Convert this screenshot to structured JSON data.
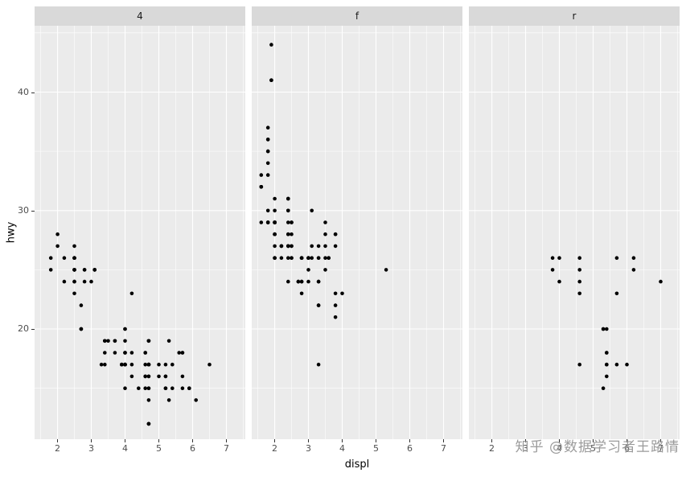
{
  "figure": {
    "watermark": "知乎 @数据学习者王路情",
    "colors": {
      "panel_bg": "#ebebeb",
      "strip_bg": "#d9d9d9",
      "grid": "#ffffff",
      "point": "#000000",
      "axis_text": "#4d4d4d",
      "watermark": "#9b9b9b"
    }
  },
  "chart_data": {
    "type": "scatter",
    "title": "",
    "xlabel": "displ",
    "ylabel": "hwy",
    "legend": "none",
    "grid": true,
    "facet_labels": [
      "4",
      "f",
      "r"
    ],
    "x_ticks": [
      2,
      3,
      4,
      5,
      6,
      7
    ],
    "y_ticks": [
      20,
      30,
      40
    ],
    "x_minor_ticks": [
      1.5,
      2.5,
      3.5,
      4.5,
      5.5,
      6.5,
      7.5
    ],
    "y_minor_ticks": [
      15,
      25,
      35,
      45
    ],
    "xlim": [
      1.32,
      7.56
    ],
    "ylim": [
      10.7,
      45.6
    ],
    "facets": [
      {
        "label": "4",
        "points": [
          [
            1.8,
            26
          ],
          [
            1.8,
            25
          ],
          [
            2.0,
            28
          ],
          [
            2.0,
            27
          ],
          [
            2.8,
            25
          ],
          [
            2.8,
            25
          ],
          [
            3.1,
            25
          ],
          [
            3.1,
            25
          ],
          [
            2.8,
            24
          ],
          [
            3.1,
            25
          ],
          [
            4.2,
            23
          ],
          [
            5.3,
            19
          ],
          [
            5.3,
            14
          ],
          [
            5.7,
            15
          ],
          [
            6.5,
            17
          ],
          [
            3.7,
            19
          ],
          [
            3.7,
            18
          ],
          [
            3.9,
            17
          ],
          [
            3.9,
            17
          ],
          [
            4.7,
            19
          ],
          [
            4.7,
            19
          ],
          [
            4.7,
            12
          ],
          [
            5.2,
            17
          ],
          [
            5.2,
            15
          ],
          [
            3.9,
            17
          ],
          [
            4.7,
            17
          ],
          [
            4.7,
            17
          ],
          [
            4.7,
            16
          ],
          [
            4.7,
            12
          ],
          [
            5.2,
            16
          ],
          [
            5.9,
            15
          ],
          [
            4.7,
            16
          ],
          [
            4.7,
            15
          ],
          [
            4.7,
            17
          ],
          [
            4.7,
            17
          ],
          [
            4.7,
            12
          ],
          [
            4.7,
            17
          ],
          [
            5.2,
            16
          ],
          [
            5.2,
            15
          ],
          [
            5.7,
            16
          ],
          [
            5.9,
            15
          ],
          [
            4.0,
            17
          ],
          [
            4.0,
            17
          ],
          [
            4.0,
            18
          ],
          [
            4.0,
            17
          ],
          [
            4.6,
            16
          ],
          [
            5.0,
            16
          ],
          [
            4.2,
            17
          ],
          [
            4.2,
            16
          ],
          [
            4.6,
            16
          ],
          [
            4.6,
            15
          ],
          [
            4.6,
            17
          ],
          [
            5.4,
            15
          ],
          [
            5.4,
            17
          ],
          [
            3.0,
            24
          ],
          [
            3.7,
            19
          ],
          [
            4.0,
            17
          ],
          [
            4.7,
            17
          ],
          [
            4.7,
            19
          ],
          [
            4.7,
            14
          ],
          [
            5.7,
            18
          ],
          [
            6.1,
            14
          ],
          [
            4.0,
            15
          ],
          [
            4.2,
            18
          ],
          [
            4.4,
            15
          ],
          [
            4.6,
            18
          ],
          [
            4.0,
            17
          ],
          [
            4.0,
            19
          ],
          [
            4.6,
            18
          ],
          [
            5.0,
            17
          ],
          [
            3.3,
            17
          ],
          [
            3.5,
            19
          ],
          [
            4.0,
            18
          ],
          [
            5.6,
            18
          ],
          [
            2.5,
            26
          ],
          [
            2.5,
            24
          ],
          [
            2.5,
            26
          ],
          [
            2.5,
            25
          ],
          [
            2.5,
            27
          ],
          [
            2.5,
            25
          ],
          [
            2.2,
            26
          ],
          [
            2.2,
            24
          ],
          [
            2.5,
            25
          ],
          [
            2.5,
            25
          ],
          [
            2.5,
            26
          ],
          [
            2.5,
            23
          ],
          [
            2.5,
            24
          ],
          [
            2.5,
            26
          ],
          [
            2.7,
            20
          ],
          [
            2.7,
            20
          ],
          [
            3.4,
            19
          ],
          [
            3.4,
            17
          ],
          [
            4.0,
            20
          ],
          [
            4.7,
            17
          ],
          [
            4.7,
            15
          ],
          [
            5.7,
            18
          ],
          [
            2.7,
            20
          ],
          [
            2.7,
            22
          ],
          [
            3.4,
            19
          ],
          [
            3.4,
            18
          ],
          [
            4.0,
            20
          ],
          [
            4.0,
            18
          ],
          [
            4.0,
            17
          ]
        ]
      },
      {
        "label": "f",
        "points": [
          [
            1.8,
            29
          ],
          [
            1.8,
            29
          ],
          [
            2.0,
            31
          ],
          [
            2.0,
            30
          ],
          [
            2.8,
            26
          ],
          [
            2.8,
            26
          ],
          [
            3.1,
            27
          ],
          [
            2.4,
            27
          ],
          [
            2.4,
            30
          ],
          [
            3.1,
            26
          ],
          [
            3.5,
            29
          ],
          [
            3.6,
            26
          ],
          [
            2.4,
            24
          ],
          [
            3.0,
            24
          ],
          [
            3.3,
            22
          ],
          [
            3.3,
            22
          ],
          [
            3.3,
            24
          ],
          [
            3.3,
            24
          ],
          [
            3.3,
            17
          ],
          [
            3.8,
            22
          ],
          [
            3.8,
            21
          ],
          [
            3.8,
            23
          ],
          [
            4.0,
            23
          ],
          [
            1.6,
            33
          ],
          [
            1.6,
            32
          ],
          [
            1.6,
            32
          ],
          [
            1.6,
            29
          ],
          [
            1.6,
            32
          ],
          [
            1.8,
            34
          ],
          [
            1.8,
            36
          ],
          [
            1.8,
            36
          ],
          [
            2.0,
            29
          ],
          [
            2.4,
            26
          ],
          [
            2.4,
            27
          ],
          [
            2.4,
            30
          ],
          [
            2.4,
            31
          ],
          [
            2.5,
            26
          ],
          [
            2.5,
            27
          ],
          [
            3.3,
            26
          ],
          [
            2.0,
            26
          ],
          [
            2.0,
            27
          ],
          [
            2.0,
            26
          ],
          [
            2.0,
            29
          ],
          [
            2.0,
            28
          ],
          [
            2.7,
            24
          ],
          [
            2.7,
            24
          ],
          [
            2.4,
            29
          ],
          [
            2.4,
            27
          ],
          [
            2.5,
            26
          ],
          [
            2.5,
            27
          ],
          [
            3.5,
            26
          ],
          [
            3.5,
            27
          ],
          [
            3.0,
            26
          ],
          [
            3.0,
            25
          ],
          [
            3.5,
            25
          ],
          [
            3.1,
            30
          ],
          [
            3.8,
            28
          ],
          [
            3.8,
            28
          ],
          [
            3.8,
            27
          ],
          [
            5.3,
            25
          ],
          [
            2.2,
            27
          ],
          [
            2.2,
            27
          ],
          [
            2.4,
            28
          ],
          [
            2.4,
            31
          ],
          [
            3.0,
            26
          ],
          [
            3.0,
            26
          ],
          [
            3.5,
            28
          ],
          [
            2.2,
            26
          ],
          [
            2.2,
            27
          ],
          [
            2.4,
            28
          ],
          [
            2.4,
            31
          ],
          [
            3.0,
            26
          ],
          [
            3.3,
            27
          ],
          [
            3.3,
            26
          ],
          [
            1.8,
            30
          ],
          [
            1.8,
            33
          ],
          [
            1.8,
            35
          ],
          [
            1.8,
            35
          ],
          [
            1.8,
            37
          ],
          [
            2.0,
            29
          ],
          [
            2.0,
            29
          ],
          [
            2.0,
            28
          ],
          [
            2.0,
            29
          ],
          [
            2.8,
            24
          ],
          [
            1.9,
            41
          ],
          [
            2.0,
            29
          ],
          [
            2.0,
            29
          ],
          [
            2.0,
            28
          ],
          [
            2.0,
            29
          ],
          [
            2.5,
            29
          ],
          [
            2.5,
            29
          ],
          [
            2.8,
            23
          ],
          [
            2.8,
            24
          ],
          [
            1.9,
            44
          ],
          [
            1.9,
            41
          ],
          [
            2.0,
            29
          ],
          [
            2.0,
            26
          ],
          [
            2.5,
            28
          ],
          [
            2.5,
            29
          ],
          [
            1.8,
            29
          ],
          [
            1.8,
            29
          ],
          [
            2.0,
            28
          ],
          [
            2.0,
            29
          ],
          [
            2.8,
            26
          ],
          [
            2.8,
            26
          ],
          [
            3.6,
            26
          ]
        ]
      },
      {
        "label": "r",
        "points": [
          [
            5.3,
            20
          ],
          [
            5.3,
            15
          ],
          [
            5.3,
            20
          ],
          [
            5.7,
            17
          ],
          [
            6.0,
            17
          ],
          [
            5.7,
            26
          ],
          [
            5.7,
            23
          ],
          [
            6.2,
            26
          ],
          [
            6.2,
            25
          ],
          [
            7.0,
            24
          ],
          [
            4.6,
            17
          ],
          [
            5.4,
            17
          ],
          [
            5.4,
            18
          ],
          [
            3.8,
            26
          ],
          [
            3.8,
            25
          ],
          [
            4.0,
            26
          ],
          [
            4.0,
            24
          ],
          [
            4.6,
            24
          ],
          [
            4.6,
            25
          ],
          [
            4.6,
            26
          ],
          [
            4.6,
            23
          ],
          [
            5.4,
            20
          ],
          [
            5.4,
            17
          ],
          [
            5.4,
            16
          ],
          [
            5.4,
            18
          ]
        ]
      }
    ]
  }
}
